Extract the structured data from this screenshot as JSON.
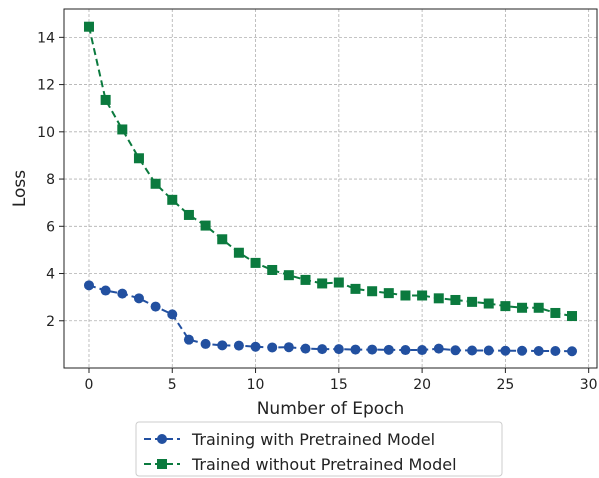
{
  "chart_data": {
    "type": "line",
    "title": "",
    "xlabel": "Number of Epoch",
    "ylabel": "Loss",
    "xlim": [
      -1.5,
      30.5
    ],
    "ylim": [
      0.0,
      15.2
    ],
    "xticks": [
      0,
      5,
      10,
      15,
      20,
      25,
      30
    ],
    "yticks": [
      2,
      4,
      6,
      8,
      10,
      12,
      14
    ],
    "grid": true,
    "legend_position": "bottom-center-outside",
    "x": [
      0,
      1,
      2,
      3,
      4,
      5,
      6,
      7,
      8,
      9,
      10,
      11,
      12,
      13,
      14,
      15,
      16,
      17,
      18,
      19,
      20,
      21,
      22,
      23,
      24,
      25,
      26,
      27,
      28,
      29
    ],
    "series": [
      {
        "name": "Training with Pretrained Model",
        "color": "#2250a0",
        "marker": "circle",
        "linestyle": "dashed",
        "values": [
          3.5,
          3.28,
          3.15,
          2.95,
          2.6,
          2.27,
          1.2,
          1.02,
          0.96,
          0.95,
          0.9,
          0.87,
          0.88,
          0.82,
          0.8,
          0.8,
          0.78,
          0.78,
          0.77,
          0.76,
          0.76,
          0.82,
          0.75,
          0.74,
          0.74,
          0.73,
          0.73,
          0.72,
          0.72,
          0.71
        ]
      },
      {
        "name": "Trained without Pretrained Model",
        "color": "#0b7a3e",
        "marker": "square",
        "linestyle": "dashed",
        "values": [
          14.45,
          11.35,
          10.1,
          8.88,
          7.8,
          7.12,
          6.48,
          6.03,
          5.45,
          4.88,
          4.45,
          4.15,
          3.93,
          3.73,
          3.58,
          3.62,
          3.35,
          3.25,
          3.17,
          3.07,
          3.07,
          2.95,
          2.88,
          2.8,
          2.73,
          2.62,
          2.55,
          2.55,
          2.33,
          2.2
        ]
      }
    ]
  }
}
